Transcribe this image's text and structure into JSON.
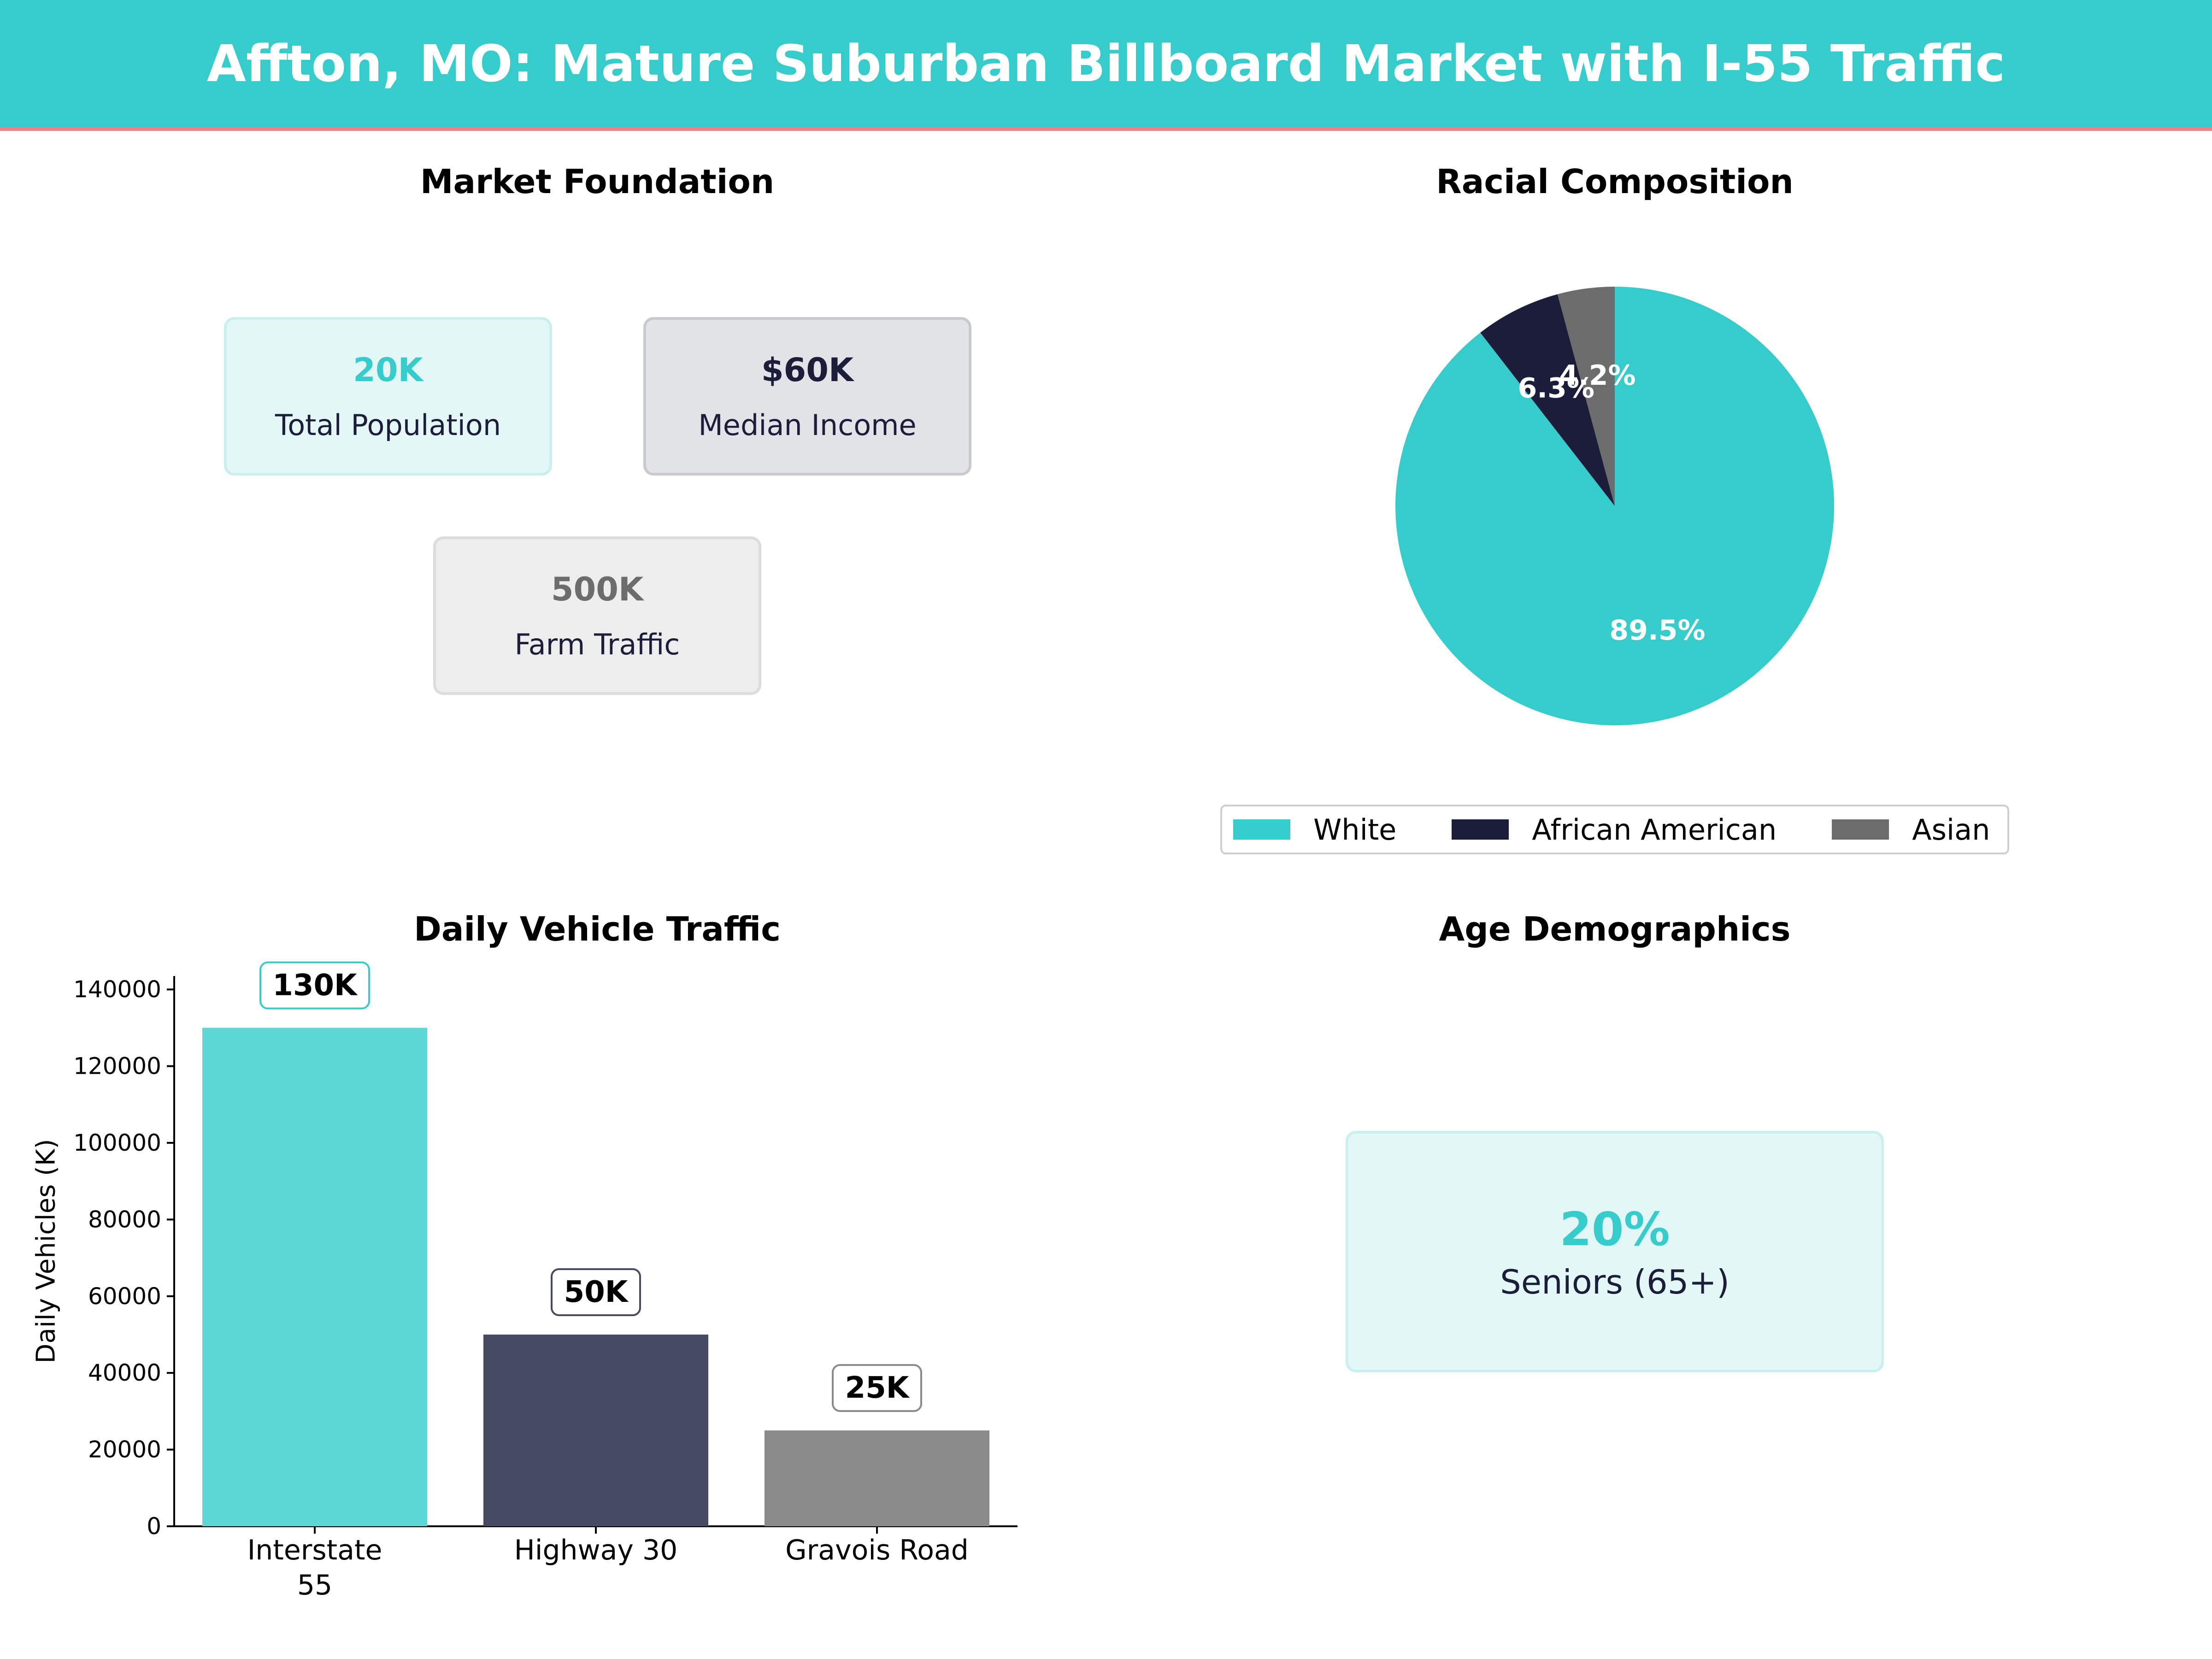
{
  "title": "Affton, MO: Mature Suburban Billboard Market with I-55 Traffic",
  "colors": {
    "accent": "#36cccc",
    "navy": "#1b1d3b",
    "gray": "#6c6c6c",
    "banner_line": "#f07f88"
  },
  "market_foundation": {
    "title": "Market Foundation",
    "kpis": [
      {
        "value": "20K",
        "label": "Total Population"
      },
      {
        "value": "$60K",
        "label": "Median Income"
      },
      {
        "value": "500K",
        "label": "Farm Traffic"
      }
    ]
  },
  "age": {
    "title": "Age Demographics",
    "value": "20%",
    "label": "Seniors (65+)"
  },
  "chart_data": [
    {
      "type": "pie",
      "title": "Racial Composition",
      "categories": [
        "White",
        "African American",
        "Asian"
      ],
      "values": [
        89.5,
        6.3,
        4.2
      ],
      "labels": [
        "89.5%",
        "6.3%",
        "4.2%"
      ],
      "colors": [
        "#36cccc",
        "#1b1d3b",
        "#6c6c6c"
      ],
      "legend": "bottom"
    },
    {
      "type": "bar",
      "title": "Daily Vehicle Traffic",
      "categories": [
        "Interstate\n55",
        "Highway 30",
        "Gravois Road"
      ],
      "values": [
        130000,
        50000,
        25000
      ],
      "data_labels": [
        "130K",
        "50K",
        "25K"
      ],
      "colors": [
        "#5dd7d6",
        "#454a62",
        "#8a8a8a"
      ],
      "xlabel": "",
      "ylabel": "Daily Vehicles (K)",
      "ylim": [
        0,
        143500
      ],
      "yticks": [
        0,
        20000,
        40000,
        60000,
        80000,
        100000,
        120000,
        140000
      ],
      "grid": false
    }
  ]
}
